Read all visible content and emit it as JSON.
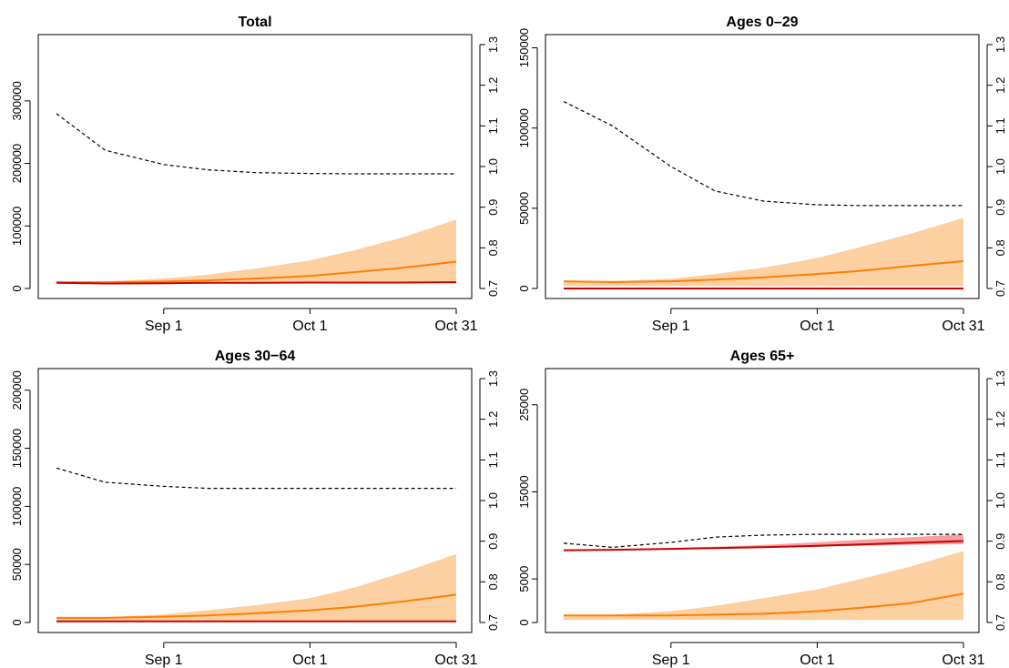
{
  "colors": {
    "projection": "#ff7f00",
    "projection_band": "#fdd0a2",
    "observed": "#cc0000",
    "observed_band": "#f8a0a0",
    "ratio": "#000000"
  },
  "chart_data": [
    {
      "type": "line",
      "title": "Total",
      "x_ticks": [
        "Sep 1",
        "Oct 1",
        "Oct 31"
      ],
      "x": [
        "Aug 10",
        "Aug 20",
        "Sep 1",
        "Sep 10",
        "Sep 20",
        "Oct 1",
        "Oct 10",
        "Oct 20",
        "Oct 31"
      ],
      "ylim_left": [
        0,
        390000
      ],
      "yticks_left": [
        0,
        100000,
        200000,
        300000
      ],
      "ylim_right": [
        0.7,
        1.3
      ],
      "yticks_right": [
        0.7,
        0.8,
        0.9,
        1.0,
        1.1,
        1.2,
        1.3
      ],
      "series": [
        {
          "role": "projection",
          "axis": "left",
          "values": [
            10000,
            10000,
            11000,
            13000,
            16000,
            20000,
            26000,
            33000,
            43000
          ]
        },
        {
          "role": "projection_band",
          "axis": "left",
          "lower": [
            10000,
            10000,
            10000,
            10000,
            10000,
            10000,
            10000,
            10000,
            10000
          ],
          "upper": [
            10000,
            11000,
            16000,
            22000,
            32000,
            45000,
            61000,
            82000,
            110000
          ]
        },
        {
          "role": "observed",
          "axis": "left",
          "values": [
            9000,
            8000,
            8500,
            9000,
            9000,
            9500,
            9500,
            9500,
            10000
          ]
        },
        {
          "role": "ratio",
          "axis": "right",
          "values": [
            1.13,
            1.04,
            1.005,
            0.992,
            0.985,
            0.983,
            0.982,
            0.982,
            0.982
          ]
        }
      ]
    },
    {
      "type": "line",
      "title": "Ages 0–29",
      "x_ticks": [
        "Sep 1",
        "Oct 1",
        "Oct 31"
      ],
      "x": [
        "Aug 10",
        "Aug 20",
        "Sep 1",
        "Sep 10",
        "Sep 20",
        "Oct 1",
        "Oct 10",
        "Oct 20",
        "Oct 31"
      ],
      "ylim_left": [
        0,
        152000
      ],
      "yticks_left": [
        0,
        50000,
        100000,
        150000
      ],
      "ylim_right": [
        0.7,
        1.3
      ],
      "yticks_right": [
        0.7,
        0.8,
        0.9,
        1.0,
        1.1,
        1.2,
        1.3
      ],
      "series": [
        {
          "role": "projection",
          "axis": "left",
          "values": [
            4500,
            4000,
            4500,
            5500,
            7000,
            9000,
            11000,
            14000,
            17000
          ]
        },
        {
          "role": "projection_band",
          "axis": "left",
          "lower": [
            1500,
            1500,
            1500,
            1500,
            1500,
            1500,
            1500,
            1500,
            1500
          ],
          "upper": [
            4500,
            4500,
            6000,
            9000,
            13000,
            19000,
            26000,
            34000,
            44000
          ]
        },
        {
          "role": "observed",
          "axis": "left",
          "values": [
            0,
            0,
            0,
            0,
            0,
            0,
            0,
            0,
            0
          ]
        },
        {
          "role": "ratio",
          "axis": "right",
          "values": [
            1.16,
            1.1,
            1.0,
            0.94,
            0.915,
            0.906,
            0.904,
            0.904,
            0.904
          ]
        }
      ]
    },
    {
      "type": "line",
      "title": "Ages 30−64",
      "x_ticks": [
        "Sep 1",
        "Oct 1",
        "Oct 31"
      ],
      "x": [
        "Aug 10",
        "Aug 20",
        "Sep 1",
        "Sep 10",
        "Sep 20",
        "Oct 1",
        "Oct 10",
        "Oct 20",
        "Oct 31"
      ],
      "ylim_left": [
        0,
        210000
      ],
      "yticks_left": [
        0,
        50000,
        100000,
        150000,
        200000
      ],
      "ylim_right": [
        0.7,
        1.3
      ],
      "yticks_right": [
        0.7,
        0.8,
        0.9,
        1.0,
        1.1,
        1.2,
        1.3
      ],
      "series": [
        {
          "role": "projection",
          "axis": "left",
          "values": [
            4000,
            4000,
            5000,
            6000,
            8000,
            10500,
            13500,
            18000,
            24000
          ]
        },
        {
          "role": "projection_band",
          "axis": "left",
          "lower": [
            1000,
            1000,
            1000,
            1000,
            1000,
            1000,
            1000,
            1000,
            1000
          ],
          "upper": [
            4000,
            4500,
            7000,
            10500,
            15000,
            21000,
            30000,
            43000,
            59000
          ]
        },
        {
          "role": "observed",
          "axis": "left",
          "values": [
            1000,
            1000,
            1000,
            1000,
            1000,
            1000,
            1000,
            1000,
            1000
          ]
        },
        {
          "role": "ratio",
          "axis": "right",
          "values": [
            1.08,
            1.045,
            1.035,
            1.03,
            1.03,
            1.03,
            1.03,
            1.03,
            1.03
          ]
        }
      ]
    },
    {
      "type": "line",
      "title": "Ages 65+",
      "x_ticks": [
        "Sep 1",
        "Oct 1",
        "Oct 31"
      ],
      "x": [
        "Aug 10",
        "Aug 20",
        "Sep 1",
        "Sep 10",
        "Sep 20",
        "Oct 1",
        "Oct 10",
        "Oct 20",
        "Oct 31"
      ],
      "ylim_left": [
        0,
        28000
      ],
      "yticks_left": [
        0,
        5000,
        15000,
        25000
      ],
      "ylim_right": [
        0.7,
        1.3
      ],
      "yticks_right": [
        0.7,
        0.8,
        0.9,
        1.0,
        1.1,
        1.2,
        1.3
      ],
      "series": [
        {
          "role": "projection",
          "axis": "left",
          "values": [
            800,
            800,
            800,
            900,
            1000,
            1300,
            1700,
            2200,
            3300
          ]
        },
        {
          "role": "projection_band",
          "axis": "left",
          "lower": [
            300,
            300,
            300,
            300,
            300,
            300,
            300,
            300,
            300
          ],
          "upper": [
            800,
            900,
            1300,
            1900,
            2800,
            3800,
            5000,
            6400,
            8200
          ]
        },
        {
          "role": "observed_band",
          "axis": "left",
          "lower": [
            8300,
            8350,
            8450,
            8500,
            8600,
            8700,
            8800,
            8900,
            9000
          ],
          "upper": [
            8300,
            8400,
            8550,
            8700,
            8900,
            9200,
            9500,
            9800,
            10100
          ]
        },
        {
          "role": "observed",
          "axis": "left",
          "values": [
            8300,
            8350,
            8450,
            8550,
            8650,
            8800,
            8950,
            9150,
            9350
          ]
        },
        {
          "role": "ratio",
          "axis": "right",
          "values": [
            0.895,
            0.885,
            0.897,
            0.91,
            0.915,
            0.917,
            0.917,
            0.917,
            0.917
          ]
        }
      ]
    }
  ]
}
